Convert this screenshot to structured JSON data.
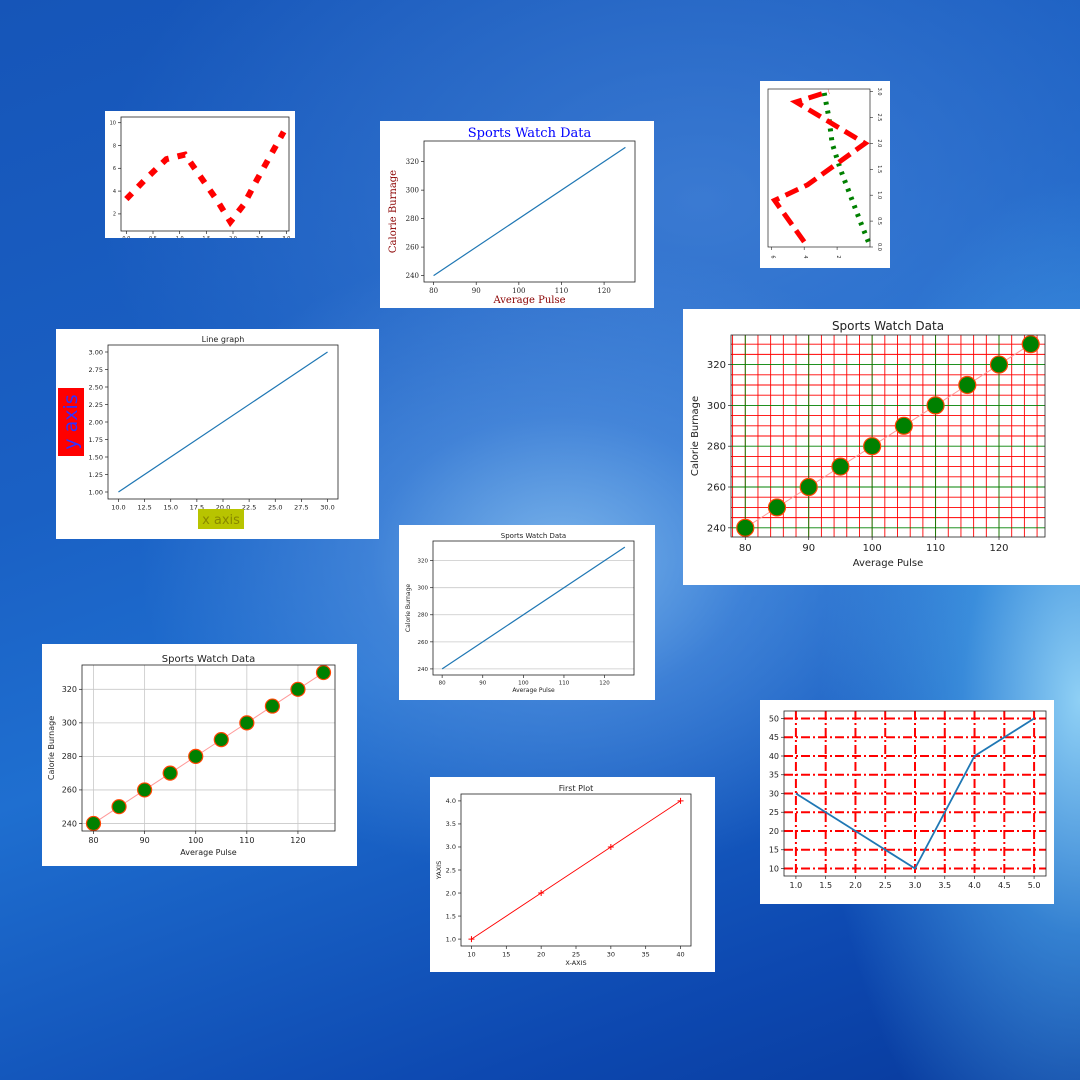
{
  "charts": {
    "c1": {
      "type": "line",
      "x": [
        0.0,
        0.35,
        0.75,
        1.1,
        1.4,
        1.7,
        1.95,
        2.2,
        2.45,
        2.7,
        2.95
      ],
      "y": [
        3.3,
        5.0,
        6.8,
        7.2,
        5.2,
        3.2,
        1.3,
        2.8,
        5.0,
        7.1,
        9.2
      ],
      "xticks": [
        "0.0",
        "0.5",
        "1.0",
        "1.5",
        "2.0",
        "2.5",
        "3.0"
      ],
      "yticks": [
        "2",
        "4",
        "6",
        "8",
        "10"
      ],
      "color": "#ff0000",
      "linestyle": "dashed"
    },
    "c2": {
      "type": "line",
      "title": "Sports Watch Data",
      "xlabel": "Average Pulse",
      "ylabel": "Calorie Burnage",
      "x": [
        80,
        125
      ],
      "y": [
        240,
        330
      ],
      "xticks": [
        "80",
        "90",
        "100",
        "110",
        "120"
      ],
      "yticks": [
        "240",
        "260",
        "280",
        "300",
        "320"
      ],
      "title_color": "#0000ff",
      "label_color": "#8b0000"
    },
    "c3": {
      "type": "line",
      "series_a": {
        "x": [
          0.1,
          0.6,
          1.2,
          1.8,
          2.3,
          2.5,
          2.8
        ],
        "y": [
          0.1,
          0.5,
          1.0,
          1.5,
          2.0,
          2.5,
          3.0
        ],
        "color": "#008000",
        "linestyle": "dotted"
      },
      "series_b": {
        "x": [
          4.0,
          5.8,
          3.8,
          0.3,
          4.5,
          2.5
        ],
        "y": [
          0.1,
          0.9,
          1.2,
          2.0,
          2.8,
          3.0
        ],
        "color": "#ff0000",
        "linestyle": "dashed"
      },
      "right_ticks": [
        "0.0",
        "0.5",
        "1.0",
        "1.5",
        "2.0",
        "2.5",
        "3.0"
      ],
      "bottom_ticks": [
        "10",
        "8",
        "6",
        "4",
        "2"
      ]
    },
    "c4": {
      "type": "line",
      "title": "Line graph",
      "xlabel": "x axis",
      "ylabel": "y axis",
      "x": [
        10,
        30
      ],
      "y": [
        1.0,
        3.0
      ],
      "xticks": [
        "10.0",
        "12.5",
        "15.0",
        "17.5",
        "20.0",
        "22.5",
        "25.0",
        "27.5",
        "30.0"
      ],
      "yticks": [
        "1.00",
        "1.25",
        "1.50",
        "1.75",
        "2.00",
        "2.25",
        "2.50",
        "2.75",
        "3.00"
      ],
      "xlabel_bg": "#b8c400",
      "ylabel_bg": "#ff0000",
      "ylabel_color": "#3030ff"
    },
    "c5": {
      "type": "line",
      "title": "Sports Watch Data",
      "xlabel": "Average Pulse",
      "ylabel": "Calorie Burnage",
      "x": [
        80,
        85,
        90,
        95,
        100,
        105,
        110,
        115,
        120,
        125
      ],
      "y": [
        240,
        250,
        260,
        270,
        280,
        290,
        300,
        310,
        320,
        330
      ],
      "xticks": [
        "80",
        "90",
        "100",
        "110",
        "120"
      ],
      "yticks": [
        "240",
        "260",
        "280",
        "300",
        "320"
      ],
      "marker_color": "#008000",
      "edge_color": "#ff4400",
      "grid_color": "#ff0000",
      "grid_alt_color": "#008000"
    },
    "c6": {
      "type": "line",
      "title": "Sports Watch Data",
      "xlabel": "Average Pulse",
      "ylabel": "Calorie Burnage",
      "x": [
        80,
        125
      ],
      "y": [
        240,
        330
      ],
      "xticks": [
        "80",
        "90",
        "100",
        "110",
        "120"
      ],
      "yticks": [
        "240",
        "260",
        "280",
        "300",
        "320"
      ],
      "grid": "horizontal"
    },
    "c7": {
      "type": "line",
      "title": "Sports Watch Data",
      "xlabel": "Average Pulse",
      "ylabel": "Calorie Burnage",
      "x": [
        80,
        85,
        90,
        95,
        100,
        105,
        110,
        115,
        120,
        125
      ],
      "y": [
        240,
        250,
        260,
        270,
        280,
        290,
        300,
        310,
        320,
        330
      ],
      "xticks": [
        "80",
        "90",
        "100",
        "110",
        "120"
      ],
      "yticks": [
        "240",
        "260",
        "280",
        "300",
        "320"
      ],
      "marker_color": "#008000",
      "edge_color": "#ff4400",
      "grid": "both"
    },
    "c8": {
      "type": "line",
      "title": "First Plot",
      "xlabel": "X-AXIS",
      "ylabel": "YAXIS",
      "x": [
        10,
        20,
        30,
        40
      ],
      "y": [
        1.0,
        2.0,
        3.0,
        4.0
      ],
      "xticks": [
        "10",
        "15",
        "20",
        "25",
        "30",
        "35",
        "40"
      ],
      "yticks": [
        "1.0",
        "1.5",
        "2.0",
        "2.5",
        "3.0",
        "3.5",
        "4.0"
      ],
      "color": "#ff0000",
      "marker": "+"
    },
    "c9": {
      "type": "line",
      "x": [
        1.0,
        2.0,
        3.0,
        4.0,
        5.0
      ],
      "y": [
        30,
        20,
        10,
        40,
        50
      ],
      "xticks": [
        "1.0",
        "1.5",
        "2.0",
        "2.5",
        "3.0",
        "3.5",
        "4.0",
        "4.5",
        "5.0"
      ],
      "yticks": [
        "10",
        "15",
        "20",
        "25",
        "30",
        "35",
        "40",
        "45",
        "50"
      ],
      "grid_color": "#ff0000",
      "grid_style": "dashdot"
    }
  }
}
